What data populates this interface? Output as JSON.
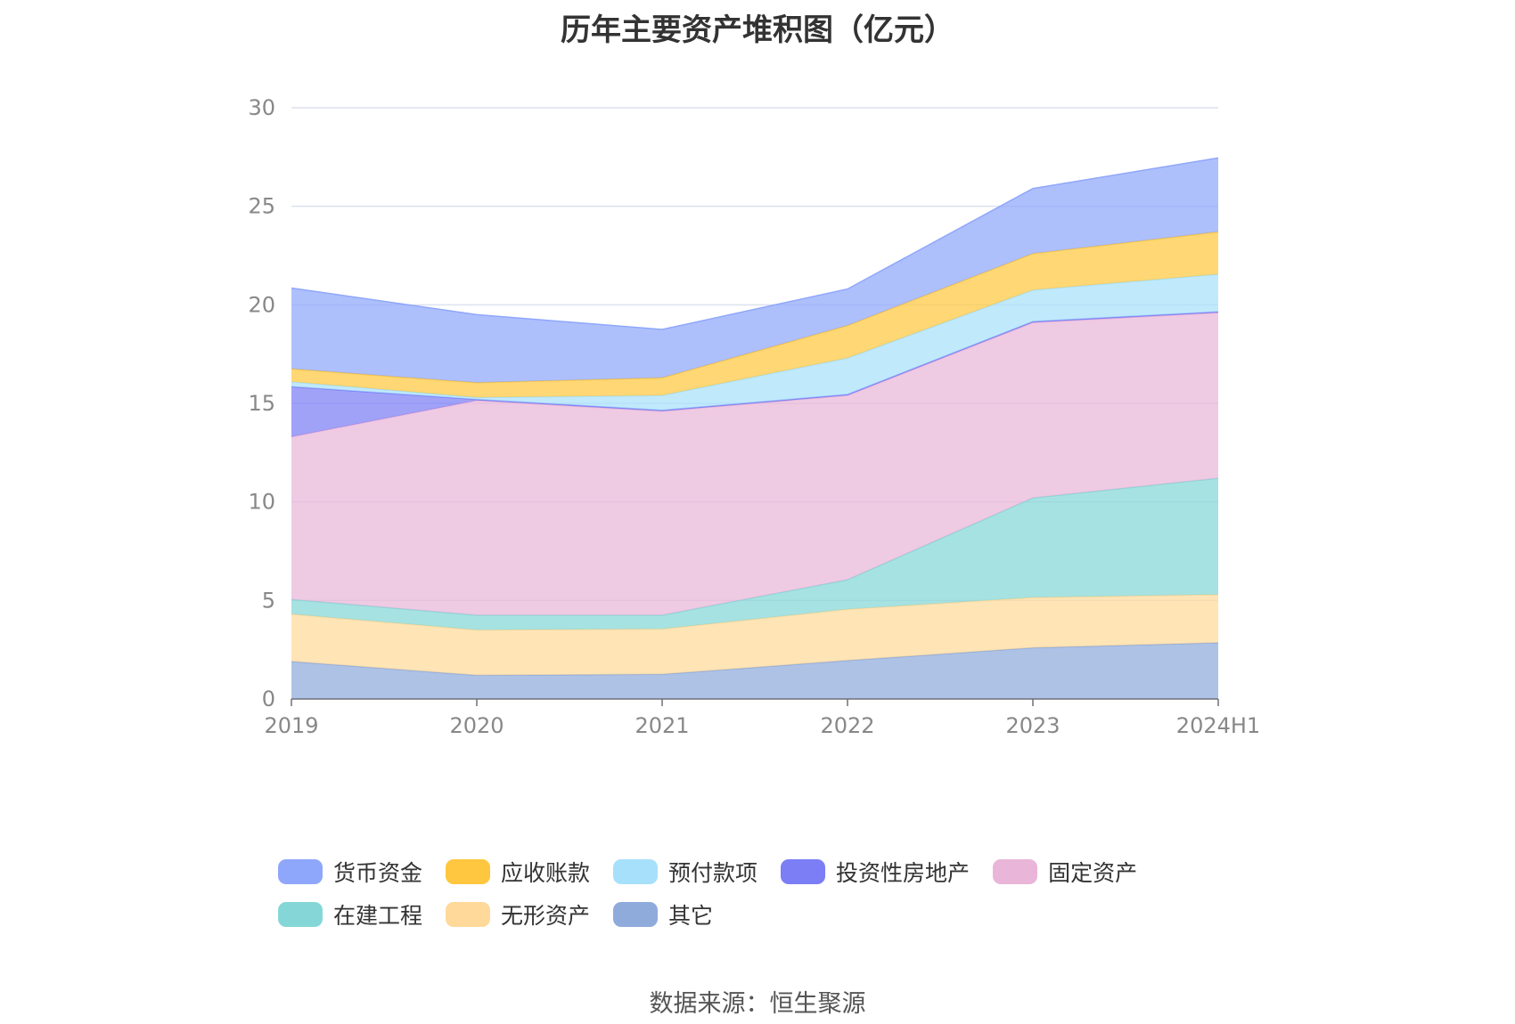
{
  "chart_data": {
    "type": "area",
    "stacked": true,
    "title": "历年主要资产堆积图（亿元）",
    "xlabel": "",
    "ylabel": "",
    "categories": [
      "2019",
      "2020",
      "2021",
      "2022",
      "2023",
      "2024H1"
    ],
    "ylim": [
      0,
      30
    ],
    "yticks": [
      0,
      5,
      10,
      15,
      20,
      25,
      30
    ],
    "grid": true,
    "legend_position": "bottom",
    "series": [
      {
        "name": "其它",
        "color": "#8fabdc",
        "values": [
          1.9,
          1.2,
          1.25,
          1.95,
          2.6,
          2.85
        ]
      },
      {
        "name": "无形资产",
        "color": "#ffd99a",
        "values": [
          2.4,
          2.3,
          2.3,
          2.6,
          2.55,
          2.45
        ]
      },
      {
        "name": "在建工程",
        "color": "#85d7d7",
        "values": [
          0.75,
          0.75,
          0.7,
          1.5,
          5.05,
          5.9
        ]
      },
      {
        "name": "固定资产",
        "color": "#e9b5d8",
        "values": [
          8.25,
          10.9,
          10.35,
          9.35,
          8.9,
          8.4
        ]
      },
      {
        "name": "投资性房地产",
        "color": "#7b7ef5",
        "values": [
          2.55,
          0.05,
          0.05,
          0.05,
          0.05,
          0.05
        ]
      },
      {
        "name": "预付款项",
        "color": "#a7e0fb",
        "values": [
          0.25,
          0.1,
          0.75,
          1.85,
          1.6,
          1.9
        ]
      },
      {
        "name": "应收账款",
        "color": "#ffc73f",
        "values": [
          0.65,
          0.75,
          0.9,
          1.65,
          1.85,
          2.15
        ]
      },
      {
        "name": "货币资金",
        "color": "#8fa7fb",
        "values": [
          4.1,
          3.45,
          2.45,
          1.85,
          3.3,
          3.75
        ]
      }
    ],
    "legend_order": [
      "货币资金",
      "应收账款",
      "预付款项",
      "投资性房地产",
      "固定资产",
      "在建工程",
      "无形资产",
      "其它"
    ]
  },
  "source": "数据来源：恒生聚源"
}
